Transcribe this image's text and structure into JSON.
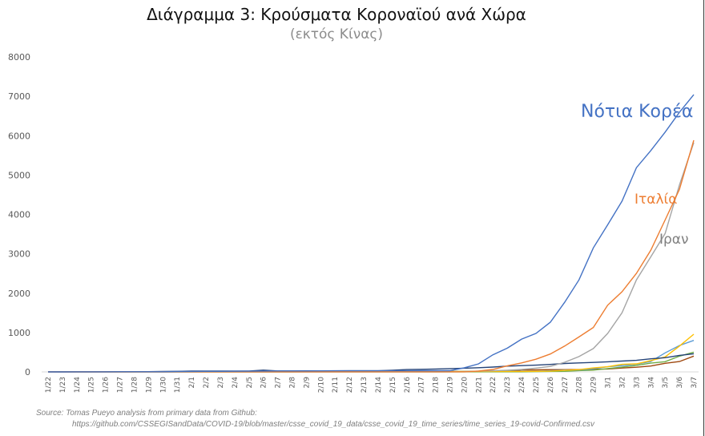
{
  "chart_data": {
    "type": "line",
    "title": "Διάγραμμα 3: Κρούσματα Κοροναϊού ανά Χώρα",
    "subtitle": "(εκτός Κίνας)",
    "xlabel": "",
    "ylabel": "",
    "ylim": [
      0,
      8000
    ],
    "yticks": [
      "0",
      "1000",
      "2000",
      "3000",
      "4000",
      "5000",
      "6000",
      "7000",
      "8000"
    ],
    "grid": false,
    "legend": "none (direct labels)",
    "categories": [
      "1/22",
      "1/23",
      "1/24",
      "1/25",
      "1/26",
      "1/27",
      "1/28",
      "1/29",
      "1/30",
      "1/31",
      "2/1",
      "2/2",
      "2/3",
      "2/4",
      "2/5",
      "2/6",
      "2/7",
      "2/8",
      "2/9",
      "2/10",
      "2/11",
      "2/12",
      "2/13",
      "2/14",
      "2/15",
      "2/16",
      "2/17",
      "2/18",
      "2/19",
      "2/20",
      "2/21",
      "2/22",
      "2/23",
      "2/24",
      "2/25",
      "2/26",
      "2/27",
      "2/28",
      "2/29",
      "3/1",
      "3/2",
      "3/3",
      "3/4",
      "3/5",
      "3/6",
      "3/7"
    ],
    "series": [
      {
        "name": "Νότια Κορέα",
        "color": "#4472c4",
        "label_color": "#4472c4",
        "values": [
          1,
          1,
          2,
          2,
          3,
          4,
          4,
          4,
          4,
          11,
          12,
          15,
          15,
          16,
          19,
          23,
          24,
          24,
          25,
          27,
          28,
          28,
          28,
          28,
          28,
          29,
          30,
          31,
          31,
          104,
          204,
          433,
          602,
          833,
          977,
          1261,
          1766,
          2337,
          3150,
          3736,
          4335,
          5186,
          5621,
          6088,
          6593,
          7041
        ]
      },
      {
        "name": "Ιταλία",
        "color": "#ed7d31",
        "label_color": "#ed7d31",
        "values": [
          0,
          0,
          0,
          0,
          0,
          0,
          0,
          0,
          0,
          2,
          2,
          2,
          2,
          2,
          2,
          2,
          3,
          3,
          3,
          3,
          3,
          3,
          3,
          3,
          3,
          3,
          3,
          3,
          3,
          3,
          20,
          62,
          155,
          229,
          322,
          453,
          655,
          888,
          1128,
          1694,
          2036,
          2502,
          3089,
          3858,
          4636,
          5883
        ]
      },
      {
        "name": "Ιραν",
        "color": "#a5a5a5",
        "label_color": "#7f7f7f",
        "values": [
          0,
          0,
          0,
          0,
          0,
          0,
          0,
          0,
          0,
          0,
          0,
          0,
          0,
          0,
          0,
          0,
          0,
          0,
          0,
          0,
          0,
          0,
          0,
          0,
          0,
          0,
          0,
          0,
          2,
          5,
          18,
          28,
          43,
          61,
          95,
          139,
          245,
          388,
          593,
          978,
          1501,
          2336,
          2922,
          3513,
          4747,
          5823
        ]
      },
      {
        "color": "#264478",
        "values": [
          2,
          1,
          2,
          2,
          4,
          4,
          7,
          7,
          11,
          15,
          20,
          20,
          20,
          22,
          22,
          45,
          25,
          25,
          26,
          26,
          26,
          28,
          28,
          29,
          43,
          59,
          66,
          74,
          84,
          94,
          105,
          122,
          147,
          159,
          170,
          189,
          214,
          228,
          241,
          256,
          274,
          293,
          331,
          360,
          420,
          461
        ]
      },
      {
        "color": "#ffc000",
        "values": [
          0,
          0,
          2,
          3,
          3,
          3,
          4,
          5,
          5,
          5,
          6,
          6,
          6,
          6,
          6,
          6,
          6,
          11,
          11,
          11,
          11,
          11,
          11,
          11,
          12,
          12,
          12,
          12,
          12,
          12,
          12,
          12,
          12,
          12,
          14,
          18,
          38,
          57,
          100,
          130,
          191,
          204,
          288,
          380,
          656,
          957
        ]
      },
      {
        "color": "#5b9bd5",
        "values": [
          0,
          0,
          0,
          0,
          0,
          1,
          4,
          4,
          4,
          5,
          8,
          10,
          12,
          12,
          12,
          12,
          13,
          13,
          14,
          14,
          16,
          16,
          16,
          16,
          16,
          16,
          16,
          16,
          16,
          16,
          16,
          16,
          16,
          16,
          17,
          27,
          46,
          48,
          79,
          130,
          159,
          196,
          262,
          482,
          670,
          799
        ]
      },
      {
        "color": "#70ad47",
        "values": [
          0,
          0,
          0,
          0,
          0,
          0,
          0,
          0,
          0,
          0,
          1,
          1,
          1,
          1,
          1,
          1,
          1,
          1,
          2,
          2,
          2,
          2,
          2,
          2,
          2,
          2,
          2,
          2,
          2,
          2,
          2,
          2,
          2,
          2,
          6,
          13,
          15,
          32,
          45,
          84,
          120,
          165,
          222,
          259,
          400,
          500
        ]
      },
      {
        "color": "#9e480e",
        "values": [
          1,
          1,
          2,
          2,
          5,
          5,
          5,
          5,
          5,
          7,
          8,
          8,
          11,
          11,
          11,
          11,
          11,
          11,
          11,
          11,
          12,
          12,
          13,
          13,
          13,
          13,
          13,
          13,
          13,
          13,
          15,
          15,
          15,
          51,
          51,
          57,
          58,
          60,
          68,
          74,
          98,
          118,
          149,
          217,
          262,
          402
        ]
      }
    ]
  },
  "source": "Source: Tomas Pueyo analysis from primary data from Github:",
  "source_url": "https://github.com/CSSEGISandData/COVID-19/blob/master/csse_covid_19_data/csse_covid_19_time_series/time_series_19-covid-Confirmed.csv"
}
